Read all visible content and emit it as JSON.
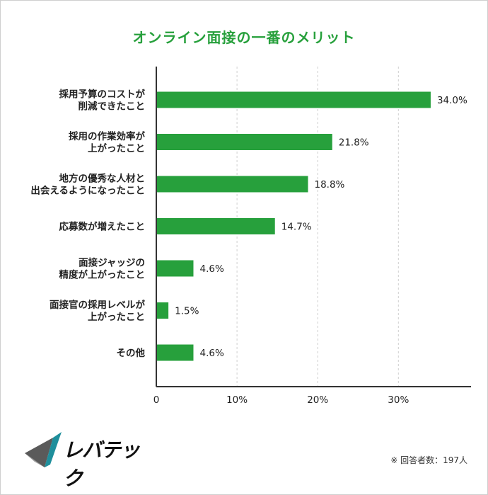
{
  "colors": {
    "accent": "#27a03c",
    "bar": "#27a03c",
    "axis": "#333333",
    "grid": "#cfcfcf"
  },
  "title": "オンライン面接の一番のメリット",
  "logo": {
    "text": "レバテック"
  },
  "note": "※ 回答者数：197人",
  "chart_data": {
    "type": "bar",
    "orientation": "horizontal",
    "title": "オンライン面接の一番のメリット",
    "categories": [
      [
        "採用予算のコストが",
        "削減できたこと"
      ],
      [
        "採用の作業効率が",
        "上がったこと"
      ],
      [
        "地方の優秀な人材と",
        "出会えるようになったこと"
      ],
      [
        "応募数が増えたこと"
      ],
      [
        "面接ジャッジの",
        "精度が上がったこと"
      ],
      [
        "面接官の採用レベルが",
        "上がったこと"
      ],
      [
        "その他"
      ]
    ],
    "values": [
      34.0,
      21.8,
      18.8,
      14.7,
      4.6,
      1.5,
      4.6
    ],
    "value_labels": [
      "34.0%",
      "21.8%",
      "18.8%",
      "14.7%",
      "4.6%",
      "1.5%",
      "4.6%"
    ],
    "xticks": [
      0,
      10,
      20,
      30
    ],
    "xtick_labels": [
      "0",
      "10%",
      "20%",
      "30%"
    ],
    "xlim": [
      0,
      39
    ],
    "grid": true,
    "legend": "none"
  }
}
